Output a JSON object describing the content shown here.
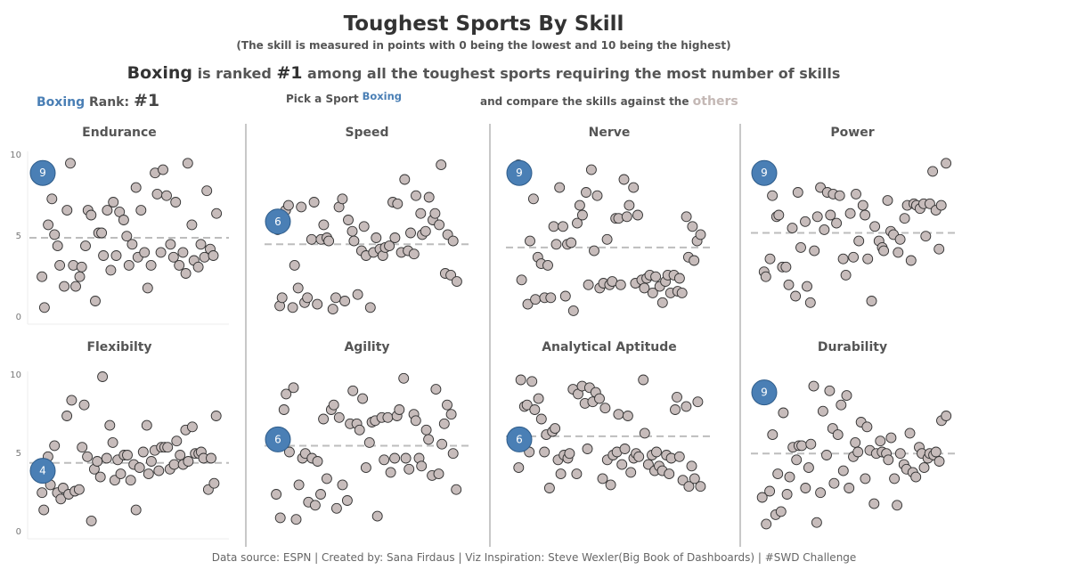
{
  "title": "Toughest Sports By Skill",
  "subtitle": "(The skill is measured in points with  0 being the lowest and 10 being the highest)",
  "headline": {
    "sport": "Boxing",
    "text1": " is ranked ",
    "rank": "#1",
    "text2": " among all the toughest sports requiring the most number of skills"
  },
  "rank_block": {
    "sport": "Boxing",
    "label": "Rank:",
    "value": "#1"
  },
  "picker": {
    "label": "Pick a Sport",
    "value": "Boxing"
  },
  "compare": {
    "text": "and compare the skills against the ",
    "others": "others"
  },
  "footer": "Data source: ESPN  |  Created by: Sana Firdaus  |  Viz Inspiration: Steve Wexler(Big Book of Dashboards) | #SWD Challenge",
  "colors": {
    "highlight": "#4a7fb5",
    "other": "#c7bcbb",
    "avgline": "#bdbdbd"
  },
  "chart_data": [
    {
      "type": "scatter",
      "title": "Endurance",
      "ylim": [
        0,
        10
      ],
      "yticks": [
        "10",
        "5",
        "0"
      ],
      "highlight": 9,
      "average": 5.0,
      "values": [
        2.6,
        0.7,
        5.8,
        7.4,
        5.2,
        4.5,
        3.3,
        2.0,
        6.7,
        9.6,
        3.3,
        2.0,
        2.6,
        3.2,
        4.5,
        6.7,
        6.4,
        1.1,
        5.3,
        5.3,
        3.9,
        6.7,
        3.0,
        7.2,
        3.9,
        6.6,
        6.1,
        5.1,
        3.3,
        4.6,
        8.1,
        3.8,
        6.7,
        4.1,
        1.9,
        3.3,
        9.0,
        7.7,
        4.1,
        9.2,
        7.6,
        4.6,
        3.8,
        7.2,
        3.3,
        4.1,
        2.8,
        9.6,
        5.8,
        3.6,
        3.2,
        4.6,
        3.8,
        7.9,
        4.3,
        3.9,
        6.5
      ]
    },
    {
      "type": "scatter",
      "title": "Speed",
      "ylim": [
        0,
        10
      ],
      "yticks": [],
      "highlight": 6,
      "average": 4.6,
      "values": [
        5.5,
        0.8,
        1.3,
        6.7,
        7.0,
        0.7,
        3.3,
        1.9,
        6.9,
        1.0,
        1.3,
        4.9,
        7.2,
        0.9,
        4.9,
        5.8,
        5.0,
        4.8,
        0.6,
        1.3,
        6.9,
        7.4,
        1.1,
        6.1,
        5.4,
        4.8,
        1.5,
        4.2,
        5.7,
        3.9,
        0.7,
        4.1,
        5.0,
        4.3,
        3.9,
        4.4,
        4.5,
        7.2,
        5.0,
        7.1,
        4.1,
        8.6,
        4.2,
        5.3,
        4.0,
        7.6,
        6.5,
        5.2,
        5.4,
        7.5,
        6.1,
        6.5,
        5.8,
        9.5,
        2.8,
        5.2,
        2.7,
        4.8,
        2.3
      ]
    },
    {
      "type": "scatter",
      "title": "Nerve",
      "ylim": [
        0,
        10
      ],
      "yticks": [],
      "highlight": 9,
      "average": 4.4,
      "values": [
        9.5,
        2.4,
        8.8,
        0.9,
        4.8,
        7.4,
        1.2,
        3.8,
        3.4,
        1.3,
        3.3,
        1.3,
        5.7,
        4.6,
        8.1,
        5.7,
        1.4,
        4.6,
        4.7,
        0.5,
        5.9,
        7.0,
        6.4,
        7.8,
        2.1,
        9.2,
        4.2,
        7.6,
        1.9,
        2.2,
        4.9,
        2.1,
        2.3,
        6.2,
        6.2,
        2.1,
        8.6,
        6.3,
        7.0,
        8.1,
        2.2,
        6.4,
        2.4,
        1.9,
        2.5,
        2.7,
        1.6,
        2.6,
        2.0,
        1.0,
        2.3,
        2.7,
        1.6,
        2.7,
        1.7,
        2.5,
        1.6,
        6.3,
        3.8,
        5.7,
        3.6,
        4.8,
        5.2
      ]
    },
    {
      "type": "scatter",
      "title": "Power",
      "ylim": [
        0,
        10
      ],
      "yticks": [],
      "highlight": 9,
      "average": 5.3,
      "values": [
        2.9,
        2.6,
        3.7,
        7.6,
        6.3,
        6.4,
        3.2,
        3.2,
        2.1,
        5.6,
        1.4,
        7.8,
        4.4,
        6.0,
        2.0,
        1.0,
        4.2,
        6.3,
        8.1,
        5.5,
        7.8,
        6.4,
        7.7,
        5.9,
        7.6,
        3.7,
        2.7,
        6.5,
        3.8,
        7.7,
        4.8,
        7.0,
        6.4,
        3.7,
        1.1,
        5.7,
        4.8,
        4.4,
        4.2,
        7.3,
        5.4,
        5.2,
        4.1,
        4.9,
        6.2,
        7.0,
        3.6,
        7.1,
        7.0,
        6.8,
        7.1,
        5.1,
        7.1,
        9.1,
        6.7,
        4.3,
        7.0,
        9.6
      ]
    },
    {
      "type": "scatter",
      "title": "Flexibilty",
      "ylim": [
        0,
        10
      ],
      "yticks": [
        "10",
        "5",
        "0"
      ],
      "highlight": 4,
      "average": 4.5,
      "values": [
        2.6,
        1.5,
        4.9,
        3.1,
        5.6,
        2.6,
        2.2,
        2.9,
        7.5,
        2.5,
        8.5,
        2.7,
        2.8,
        5.5,
        8.2,
        4.9,
        0.8,
        4.1,
        4.6,
        3.6,
        10.0,
        4.8,
        6.9,
        5.8,
        3.4,
        4.7,
        3.8,
        5.0,
        5.0,
        3.4,
        4.4,
        1.5,
        4.2,
        5.2,
        6.9,
        3.8,
        4.6,
        5.3,
        4.0,
        5.5,
        5.5,
        5.5,
        4.1,
        4.4,
        5.9,
        5.0,
        4.4,
        6.6,
        4.6,
        6.8,
        5.1,
        5.1,
        5.2,
        4.8,
        2.8,
        4.8,
        3.2,
        7.5
      ]
    },
    {
      "type": "scatter",
      "title": "Agility",
      "ylim": [
        0,
        10
      ],
      "yticks": [],
      "highlight": 6,
      "average": 5.6,
      "values": [
        2.5,
        1.0,
        7.9,
        8.9,
        5.2,
        9.3,
        0.9,
        3.1,
        4.8,
        5.1,
        2.0,
        4.8,
        1.8,
        4.6,
        2.5,
        7.3,
        3.5,
        7.9,
        8.2,
        1.6,
        7.4,
        3.1,
        2.1,
        7.0,
        9.1,
        7.0,
        6.6,
        8.6,
        4.2,
        5.8,
        7.1,
        7.2,
        1.1,
        7.4,
        4.7,
        7.4,
        3.9,
        4.8,
        7.5,
        7.9,
        9.9,
        4.8,
        4.1,
        7.6,
        7.2,
        4.8,
        4.3,
        6.6,
        6.0,
        3.7,
        9.2,
        3.8,
        5.7,
        7.0,
        8.2,
        7.6,
        5.1,
        2.8
      ]
    },
    {
      "type": "scatter",
      "title": "Analytical Aptitude",
      "ylim": [
        0,
        10
      ],
      "yticks": [],
      "highlight": 6,
      "average": 6.2,
      "values": [
        4.2,
        9.8,
        8.1,
        8.2,
        5.2,
        9.7,
        7.9,
        8.6,
        7.3,
        5.2,
        6.3,
        2.9,
        6.5,
        6.7,
        4.7,
        3.8,
        5.0,
        4.8,
        5.1,
        9.2,
        3.8,
        8.9,
        9.4,
        8.3,
        5.4,
        9.3,
        8.4,
        9.0,
        8.6,
        3.5,
        8.0,
        4.7,
        3.1,
        5.0,
        5.2,
        7.6,
        4.4,
        5.4,
        7.5,
        3.9,
        4.8,
        5.1,
        4.9,
        9.8,
        6.4,
        4.4,
        5.0,
        4.0,
        5.2,
        4.3,
        4.0,
        5.0,
        3.8,
        4.8,
        7.9,
        8.7,
        4.9,
        3.4,
        8.1,
        3.0,
        4.3,
        3.5,
        8.4,
        3.0
      ]
    },
    {
      "type": "scatter",
      "title": "Durability",
      "ylim": [
        0,
        10
      ],
      "yticks": [],
      "highlight": 9,
      "average": 5.1,
      "values": [
        2.3,
        0.6,
        2.7,
        6.3,
        1.2,
        3.8,
        1.4,
        7.7,
        2.5,
        3.6,
        5.5,
        4.7,
        5.6,
        5.6,
        2.9,
        4.2,
        5.7,
        9.4,
        0.7,
        2.6,
        7.8,
        5.0,
        9.1,
        6.7,
        3.2,
        6.3,
        8.2,
        4.0,
        8.8,
        2.9,
        4.9,
        5.8,
        5.2,
        7.1,
        3.5,
        6.8,
        5.3,
        1.9,
        5.1,
        5.9,
        5.2,
        5.1,
        4.7,
        6.1,
        3.5,
        1.8,
        5.1,
        4.4,
        4.1,
        6.4,
        3.9,
        3.6,
        5.5,
        5.1,
        4.2,
        4.8,
        5.1,
        5.0,
        5.2,
        4.6,
        7.2,
        7.5
      ]
    }
  ]
}
